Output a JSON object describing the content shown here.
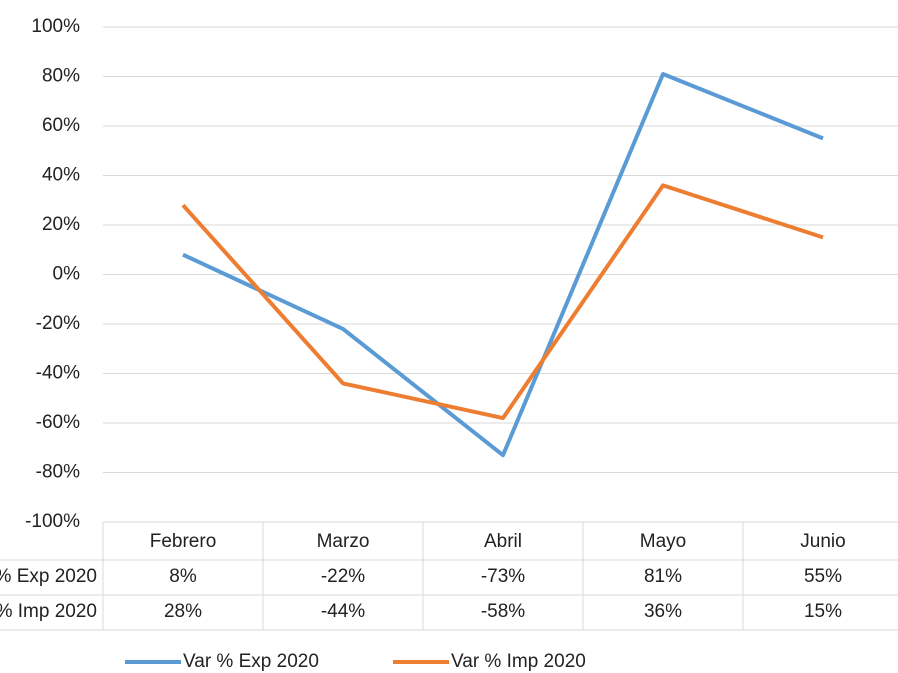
{
  "chart_data": {
    "type": "line",
    "categories": [
      "Febrero",
      "Marzo",
      "Abril",
      "Mayo",
      "Junio"
    ],
    "series": [
      {
        "name": "Var % Exp 2020",
        "color": "#5b9bd5",
        "values": [
          8,
          -22,
          -73,
          81,
          55
        ],
        "value_labels": [
          "8%",
          "-22%",
          "-73%",
          "81%",
          "55%"
        ]
      },
      {
        "name": "Var % Imp 2020",
        "color": "#ed7d31",
        "values": [
          28,
          -44,
          -58,
          36,
          15
        ],
        "value_labels": [
          "28%",
          "-44%",
          "-58%",
          "36%",
          "15%"
        ]
      }
    ],
    "ylim": [
      -100,
      100
    ],
    "yticks": [
      {
        "value": -100,
        "label": "-100%"
      },
      {
        "value": -80,
        "label": "-80%"
      },
      {
        "value": -60,
        "label": "-60%"
      },
      {
        "value": -40,
        "label": "-40%"
      },
      {
        "value": -20,
        "label": "-20%"
      },
      {
        "value": 0,
        "label": "0%"
      },
      {
        "value": 20,
        "label": "20%"
      },
      {
        "value": 40,
        "label": "40%"
      },
      {
        "value": 60,
        "label": "60%"
      },
      {
        "value": 80,
        "label": "80%"
      },
      {
        "value": 100,
        "label": "100%"
      }
    ],
    "grid": true,
    "legend": "bottom"
  }
}
